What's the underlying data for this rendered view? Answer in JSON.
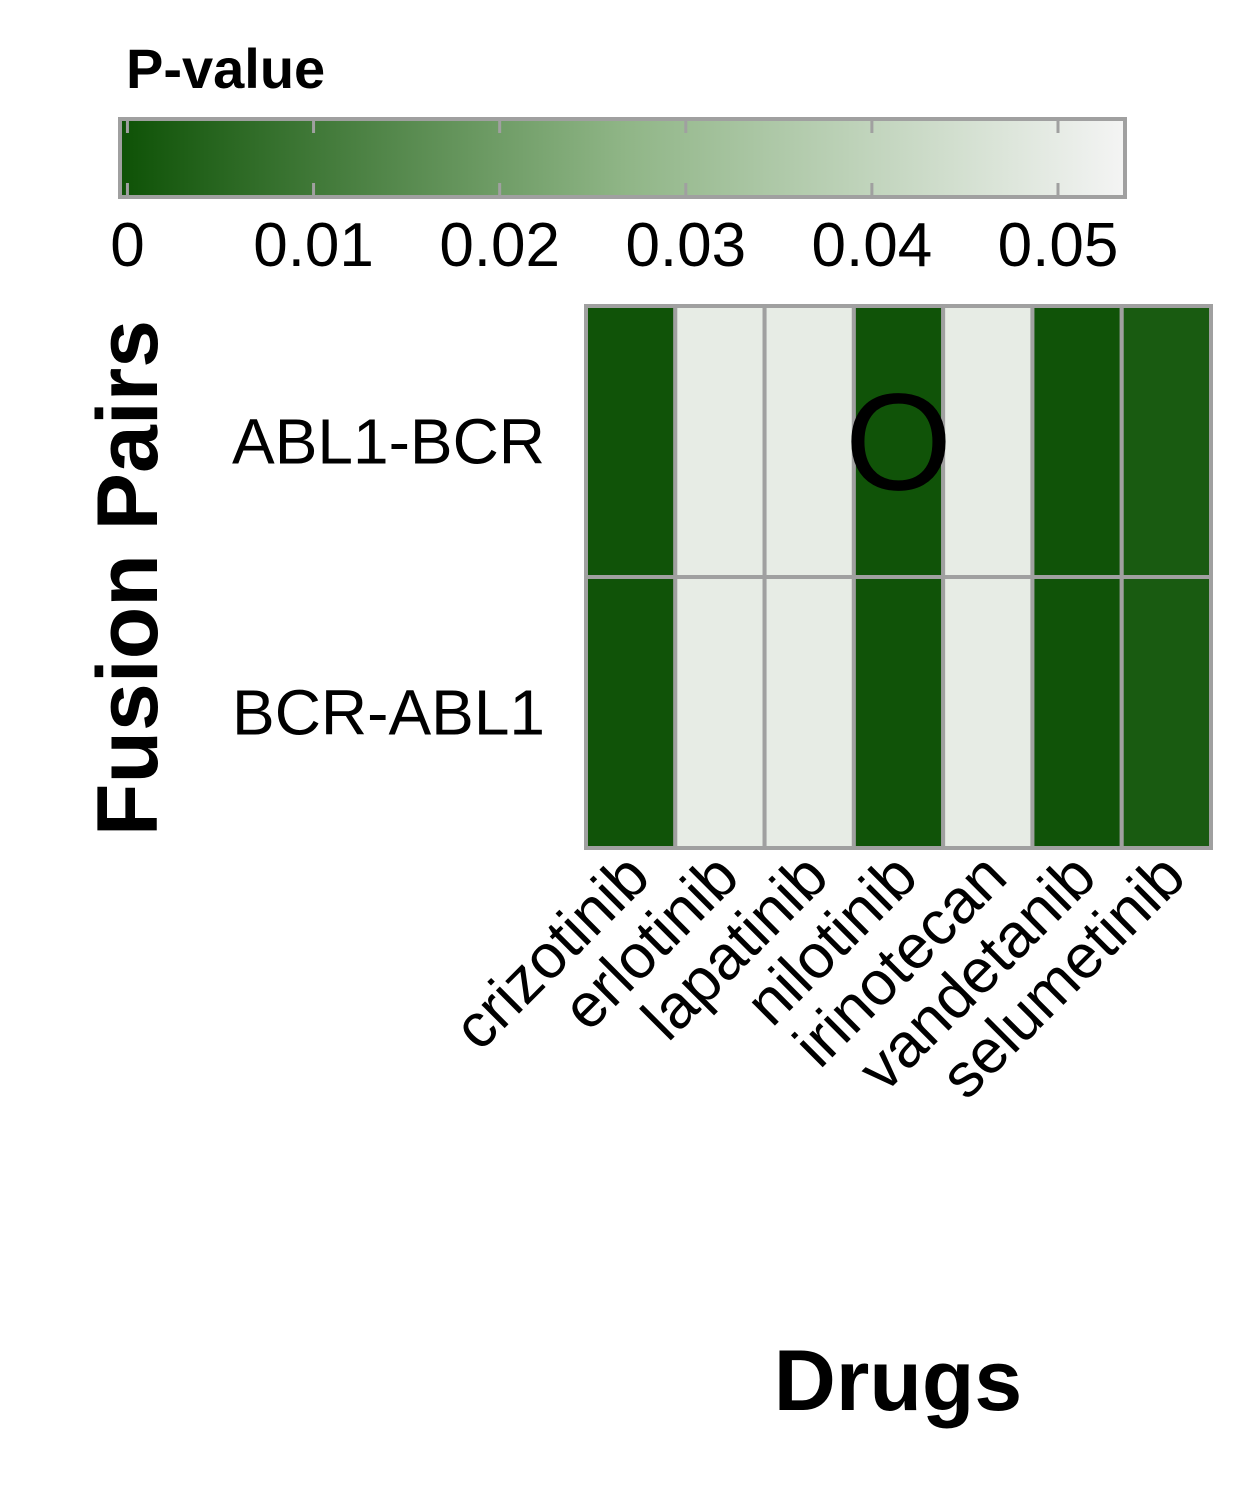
{
  "chart_data": {
    "type": "heatmap",
    "title": "",
    "xlabel": "Drugs",
    "ylabel": "Fusion Pairs",
    "x": [
      "crizotinib",
      "erlotinib",
      "lapatinib",
      "nilotinib",
      "irinotecan",
      "vandetanib",
      "selumetinib"
    ],
    "y": [
      "ABL1-BCR",
      "BCR-ABL1"
    ],
    "values": [
      [
        0.0,
        0.05,
        0.05,
        0.0,
        0.05,
        0.0,
        0.002
      ],
      [
        0.0,
        0.05,
        0.05,
        0.0,
        0.05,
        0.0,
        0.002
      ]
    ],
    "annotations": [
      {
        "row": 0,
        "col": 3,
        "text": "O"
      }
    ],
    "legend": {
      "title": "P-value",
      "position": "top",
      "range": [
        -0.0004,
        0.0536
      ],
      "ticks": [
        0,
        0.01,
        0.02,
        0.03,
        0.04,
        0.05
      ],
      "tick_labels": [
        "0",
        "0.01",
        "0.02",
        "0.03",
        "0.04",
        "0.05"
      ],
      "color_low": "#0e5206",
      "color_mid": "#8fb586",
      "color_high": "#f4f4f4"
    },
    "grid_color": "#a0a0a0"
  }
}
